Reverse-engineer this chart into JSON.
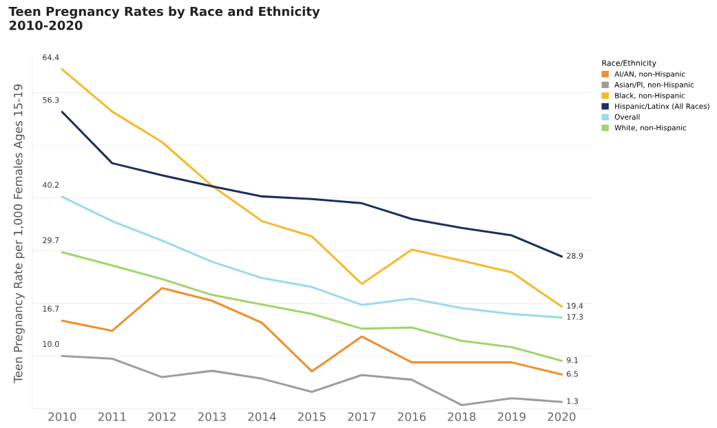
{
  "chart_data": {
    "type": "line",
    "title": "Teen Pregnancy Rates by Race and Ethnicity\n2010-2020",
    "ylabel": "Teen Pregnancy Rate per 1,000 Females Ages 15-19",
    "legend_title": "Race/Ethnicity",
    "legend": "top right",
    "categories": [
      "2010",
      "2011",
      "2012",
      "2013",
      "2014",
      "2015",
      "2017",
      "2016",
      "2018",
      "2019",
      "2020"
    ],
    "ylim": [
      0,
      66.6
    ],
    "yticks": [
      {
        "value": 10,
        "label": null
      },
      {
        "value": 20,
        "label": null
      },
      {
        "value": 30,
        "label": null
      },
      {
        "value": 40,
        "label": null
      },
      {
        "value": 50,
        "label": null
      },
      {
        "value": 60,
        "label": null
      }
    ],
    "grid": "y",
    "tick_labels": "x",
    "marker": "none",
    "line_style": "solid",
    "series": [
      {
        "name": "AI/AN, non-Hispanic",
        "color": "#f28e2b",
        "values": [
          16.7,
          14.8,
          22.9,
          20.5,
          16.3,
          7.1,
          13.7,
          8.8,
          8.8,
          8.8,
          6.5
        ],
        "value_labels": [
          "16.7",
          null,
          null,
          null,
          null,
          null,
          null,
          null,
          null,
          null,
          "6.5"
        ]
      },
      {
        "name": "Asian/PI, non-Hispanic",
        "color": "#9d9d9d",
        "values": [
          10.0,
          9.5,
          6.0,
          7.2,
          5.7,
          3.2,
          6.4,
          5.5,
          0.7,
          2.0,
          1.3
        ],
        "value_labels": [
          "10.0",
          null,
          null,
          null,
          null,
          null,
          null,
          null,
          null,
          null,
          "1.3"
        ]
      },
      {
        "name": "Black, non-Hispanic",
        "color": "#f7b928",
        "values": [
          64.4,
          56.4,
          50.6,
          42.3,
          35.6,
          32.7,
          23.7,
          30.2,
          28.1,
          25.9,
          19.4
        ],
        "value_labels": [
          "64.4",
          null,
          null,
          null,
          null,
          null,
          null,
          null,
          null,
          null,
          "19.4"
        ]
      },
      {
        "name": "Hispanic/Latinx (All Races)",
        "color": "#1c2f5e",
        "values": [
          56.3,
          46.6,
          44.3,
          42.2,
          40.3,
          39.8,
          39.0,
          36.0,
          34.3,
          32.9,
          28.9
        ],
        "value_labels": [
          "56.3",
          null,
          null,
          null,
          null,
          null,
          null,
          null,
          null,
          null,
          "28.9"
        ]
      },
      {
        "name": "Overall",
        "color": "#99dbe9",
        "values": [
          40.2,
          35.6,
          31.9,
          27.9,
          24.8,
          23.1,
          19.7,
          20.9,
          19.1,
          18.0,
          17.3
        ],
        "value_labels": [
          "40.2",
          null,
          null,
          null,
          null,
          null,
          null,
          null,
          null,
          null,
          "17.3"
        ]
      },
      {
        "name": "White, non-Hispanic",
        "color": "#a1d56b",
        "values": [
          29.7,
          27.2,
          24.6,
          21.6,
          19.8,
          18.0,
          15.2,
          15.4,
          12.9,
          11.7,
          9.1
        ],
        "value_labels": [
          "29.7",
          null,
          null,
          null,
          null,
          null,
          null,
          null,
          null,
          null,
          "9.1"
        ]
      }
    ]
  }
}
